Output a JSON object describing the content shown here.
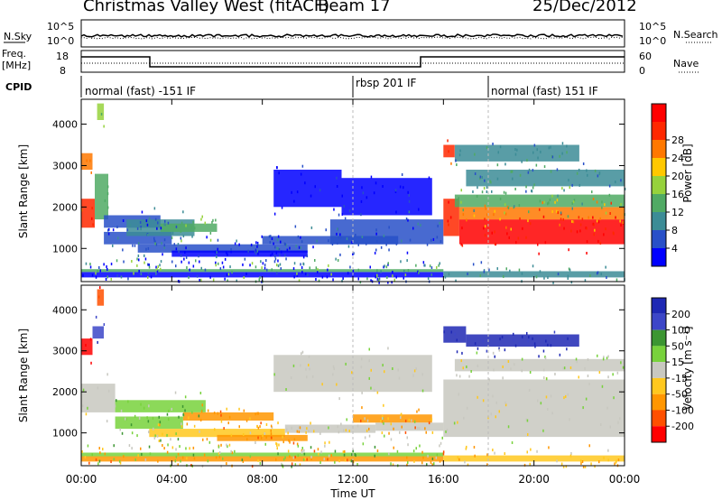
{
  "header": {
    "station": "Christmas Valley West (fitACF)",
    "beam": "Beam 17",
    "date": "25/Dec/2012"
  },
  "labels": {
    "nsky": "N.Sky",
    "nsearch": "N.Search",
    "freq": "Freq.",
    "freq_unit": "[MHz]",
    "nave": "Nave",
    "cpid": "CPID",
    "slant_range": "Slant Range [km]",
    "power": "Power [dB]",
    "velocity": "Velocity [m s⁻¹]",
    "time_axis": "Time UT"
  },
  "noise_ticks_left": [
    "10^5",
    "10^0"
  ],
  "noise_ticks_right": [
    "10^5",
    "10^0"
  ],
  "freq_ticks": [
    "18",
    "8"
  ],
  "nave_ticks": [
    "60",
    "0"
  ],
  "cpid_segments": [
    {
      "label": "normal (fast) -151 IF",
      "start_hour": 0
    },
    {
      "label": "rbsp 201 IF",
      "start_hour": 12
    },
    {
      "label": "normal (fast) 151 IF",
      "start_hour": 18
    }
  ],
  "colors": {
    "power": [
      "#0000ff",
      "#2850c8",
      "#3c8c96",
      "#50aa64",
      "#96d23c",
      "#ffc800",
      "#ff7800",
      "#ff2800",
      "#ff0000"
    ],
    "velocity": [
      "#1e28b4",
      "#3c46c8",
      "#3c9632",
      "#78d23c",
      "#c8c8c0",
      "#ffc81e",
      "#ff9600",
      "#ff5000",
      "#ff0000"
    ]
  },
  "chart_data": [
    {
      "type": "heatmap",
      "name": "power",
      "ylabel": "Slant Range [km]",
      "xlabel": "Time UT",
      "x_ticks": [
        "00:00",
        "04:00",
        "08:00",
        "12:00",
        "16:00",
        "20:00",
        "00:00"
      ],
      "y_ticks": [
        "1000",
        "2000",
        "3000",
        "4000"
      ],
      "xlim": [
        0,
        24
      ],
      "ylim": [
        200,
        4600
      ],
      "colorbar": {
        "label": "Power [dB]",
        "ticks": [
          "4",
          "8",
          "12",
          "16",
          "20",
          "24",
          "28"
        ]
      },
      "bands": [
        {
          "t0": 0.0,
          "t1": 0.6,
          "r0": 1500,
          "r1": 2200,
          "c": 7
        },
        {
          "t0": 0.6,
          "t1": 1.2,
          "r0": 1700,
          "r1": 2800,
          "c": 3
        },
        {
          "t0": 0.0,
          "t1": 0.5,
          "r0": 2900,
          "r1": 3300,
          "c": 6
        },
        {
          "t0": 0.7,
          "t1": 1.0,
          "r0": 4100,
          "r1": 4500,
          "c": 4
        },
        {
          "t0": 1.0,
          "t1": 3.5,
          "r0": 1500,
          "r1": 1800,
          "c": 1
        },
        {
          "t0": 1.0,
          "t1": 4.0,
          "r0": 1100,
          "r1": 1400,
          "c": 1
        },
        {
          "t0": 2.0,
          "t1": 5.0,
          "r0": 1300,
          "r1": 1700,
          "c": 2
        },
        {
          "t0": 3.5,
          "t1": 6.0,
          "r0": 1400,
          "r1": 1600,
          "c": 3
        },
        {
          "t0": 2.5,
          "t1": 10.0,
          "r0": 900,
          "r1": 1100,
          "c": 1
        },
        {
          "t0": 4.0,
          "t1": 10.0,
          "r0": 800,
          "r1": 950,
          "c": 0
        },
        {
          "t0": 8.0,
          "t1": 14.0,
          "r0": 1100,
          "r1": 1300,
          "c": 1
        },
        {
          "t0": 11.0,
          "t1": 16.0,
          "r0": 1100,
          "r1": 1700,
          "c": 1
        },
        {
          "t0": 8.5,
          "t1": 11.5,
          "r0": 2000,
          "r1": 2900,
          "c": 0
        },
        {
          "t0": 11.5,
          "t1": 15.5,
          "r0": 1800,
          "r1": 2700,
          "c": 0
        },
        {
          "t0": 0.0,
          "t1": 16.0,
          "r0": 300,
          "r1": 430,
          "c": 0
        },
        {
          "t0": 0.0,
          "t1": 16.0,
          "r0": 430,
          "r1": 500,
          "c": 3
        },
        {
          "t0": 16.0,
          "t1": 16.7,
          "r0": 1300,
          "r1": 2200,
          "c": 7
        },
        {
          "t0": 16.7,
          "t1": 24.0,
          "r0": 1100,
          "r1": 1700,
          "c": 8
        },
        {
          "t0": 16.7,
          "t1": 24.0,
          "r0": 1700,
          "r1": 2000,
          "c": 6
        },
        {
          "t0": 16.5,
          "t1": 24.0,
          "r0": 2000,
          "r1": 2300,
          "c": 3
        },
        {
          "t0": 16.0,
          "t1": 16.5,
          "r0": 3200,
          "r1": 3500,
          "c": 7
        },
        {
          "t0": 16.5,
          "t1": 22.0,
          "r0": 3100,
          "r1": 3500,
          "c": 2
        },
        {
          "t0": 17.0,
          "t1": 24.0,
          "r0": 2500,
          "r1": 2900,
          "c": 2
        },
        {
          "t0": 16.0,
          "t1": 24.0,
          "r0": 300,
          "r1": 450,
          "c": 2
        }
      ]
    },
    {
      "type": "heatmap",
      "name": "velocity",
      "ylabel": "Slant Range [km]",
      "xlabel": "Time UT",
      "x_ticks": [
        "00:00",
        "04:00",
        "08:00",
        "12:00",
        "16:00",
        "20:00",
        "00:00"
      ],
      "y_ticks": [
        "1000",
        "2000",
        "3000",
        "4000"
      ],
      "xlim": [
        0,
        24
      ],
      "ylim": [
        200,
        4600
      ],
      "colorbar": {
        "label": "Velocity [m s⁻¹]",
        "ticks": [
          "200",
          "100",
          "50",
          "15",
          "-15",
          "-50",
          "-100",
          "-200"
        ]
      },
      "bands": [
        {
          "t0": 0.0,
          "t1": 1.5,
          "r0": 1500,
          "r1": 2200,
          "c": 4
        },
        {
          "t0": 0.0,
          "t1": 0.5,
          "r0": 2900,
          "r1": 3300,
          "c": 8
        },
        {
          "t0": 0.5,
          "t1": 1.0,
          "r0": 3300,
          "r1": 3600,
          "c": 1
        },
        {
          "t0": 0.7,
          "t1": 1.0,
          "r0": 4100,
          "r1": 4500,
          "c": 7
        },
        {
          "t0": 1.5,
          "t1": 5.5,
          "r0": 1500,
          "r1": 1800,
          "c": 3
        },
        {
          "t0": 1.5,
          "t1": 4.5,
          "r0": 1100,
          "r1": 1400,
          "c": 3
        },
        {
          "t0": 4.5,
          "t1": 8.5,
          "r0": 1300,
          "r1": 1500,
          "c": 6
        },
        {
          "t0": 3.0,
          "t1": 9.0,
          "r0": 900,
          "r1": 1100,
          "c": 5
        },
        {
          "t0": 6.0,
          "t1": 10.0,
          "r0": 800,
          "r1": 950,
          "c": 6
        },
        {
          "t0": 9.0,
          "t1": 13.0,
          "r0": 1000,
          "r1": 1200,
          "c": 4
        },
        {
          "t0": 12.0,
          "t1": 15.5,
          "r0": 1250,
          "r1": 1450,
          "c": 6
        },
        {
          "t0": 13.0,
          "t1": 16.0,
          "r0": 1050,
          "r1": 1250,
          "c": 4
        },
        {
          "t0": 8.5,
          "t1": 15.5,
          "r0": 2000,
          "r1": 2900,
          "c": 4
        },
        {
          "t0": 0.0,
          "t1": 16.0,
          "r0": 300,
          "r1": 430,
          "c": 6
        },
        {
          "t0": 0.0,
          "t1": 16.0,
          "r0": 430,
          "r1": 520,
          "c": 3
        },
        {
          "t0": 16.0,
          "t1": 24.0,
          "r0": 900,
          "r1": 2300,
          "c": 4
        },
        {
          "t0": 16.0,
          "t1": 17.0,
          "r0": 3200,
          "r1": 3600,
          "c": 0
        },
        {
          "t0": 17.0,
          "t1": 22.0,
          "r0": 3100,
          "r1": 3400,
          "c": 0
        },
        {
          "t0": 16.5,
          "t1": 24.0,
          "r0": 2500,
          "r1": 2800,
          "c": 4
        },
        {
          "t0": 16.0,
          "t1": 24.0,
          "r0": 300,
          "r1": 450,
          "c": 5
        }
      ]
    }
  ]
}
